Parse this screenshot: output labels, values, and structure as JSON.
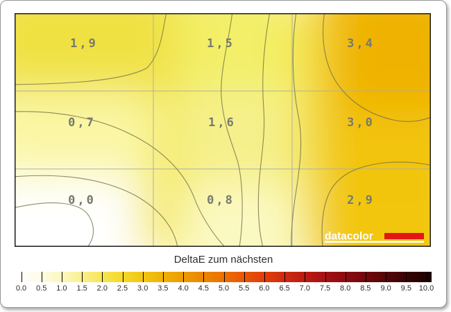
{
  "plot": {
    "base_color": "#f4e855",
    "border_color": "#1b1b1b",
    "grid_color": "#adada3",
    "contour_color": "#6f6f45",
    "label_color": "#767a6c",
    "field_colors": {
      "r0c0": "#f0e142",
      "r0c1": "#f3ef68",
      "r0c2": "#efb204",
      "r1c0": "#faf7a6",
      "r1c1": "#f5f08c",
      "r1c2": "#f2c40e",
      "r2c0": "#ffffff",
      "r2c1": "#fbf9c2",
      "r2c2": "#f2c60b"
    },
    "cells": [
      {
        "row": 0,
        "col": 0,
        "label": "1,9"
      },
      {
        "row": 0,
        "col": 1,
        "label": "1,5"
      },
      {
        "row": 0,
        "col": 2,
        "label": "3,4"
      },
      {
        "row": 1,
        "col": 0,
        "label": "0,7"
      },
      {
        "row": 1,
        "col": 1,
        "label": "1,6"
      },
      {
        "row": 1,
        "col": 2,
        "label": "3,0"
      },
      {
        "row": 2,
        "col": 0,
        "label": "0,0"
      },
      {
        "row": 2,
        "col": 1,
        "label": "0,8"
      },
      {
        "row": 2,
        "col": 2,
        "label": "2,9"
      }
    ],
    "logo": {
      "text": "datacolor",
      "text_color": "#ffffff",
      "bar_color": "#e41613"
    }
  },
  "colorbar": {
    "title": "DeltaE zum nächsten",
    "tick_labels": [
      "0.0",
      "0.5",
      "1.0",
      "1.5",
      "2.0",
      "2.5",
      "3.0",
      "3.5",
      "4.0",
      "4.5",
      "5.0",
      "5.5",
      "6.0",
      "6.5",
      "7.0",
      "7.5",
      "8.0",
      "8.5",
      "9.0",
      "9.5",
      "10.0"
    ],
    "gradient": [
      [
        "0%",
        "#ffffff"
      ],
      [
        "5%",
        "#fffceb"
      ],
      [
        "10%",
        "#fdf8c8"
      ],
      [
        "15%",
        "#faf29a"
      ],
      [
        "20%",
        "#f7e75f"
      ],
      [
        "25%",
        "#f5da30"
      ],
      [
        "30%",
        "#f2c816"
      ],
      [
        "35%",
        "#efb309"
      ],
      [
        "40%",
        "#ec9d04"
      ],
      [
        "45%",
        "#ea8602"
      ],
      [
        "50%",
        "#ee7000"
      ],
      [
        "55%",
        "#e95506"
      ],
      [
        "60%",
        "#de3d0b"
      ],
      [
        "65%",
        "#cd2a10"
      ],
      [
        "70%",
        "#ba1a12"
      ],
      [
        "75%",
        "#a11013"
      ],
      [
        "80%",
        "#870b10"
      ],
      [
        "85%",
        "#6c070b"
      ],
      [
        "90%",
        "#500407"
      ],
      [
        "95%",
        "#330203"
      ],
      [
        "100%",
        "#190101"
      ]
    ]
  },
  "chart_data": {
    "type": "heatmap",
    "title": "DeltaE zum nächsten",
    "grid": {
      "rows": 3,
      "cols": 3
    },
    "values": [
      [
        1.9,
        1.5,
        3.4
      ],
      [
        0.7,
        1.6,
        3.0
      ],
      [
        0.0,
        0.8,
        2.9
      ]
    ],
    "value_labels": [
      [
        "1,9",
        "1,5",
        "3,4"
      ],
      [
        "0,7",
        "1,6",
        "3,0"
      ],
      [
        "0,0",
        "0,8",
        "2,9"
      ]
    ],
    "grid_lines": true,
    "contour_lines": true,
    "watermark": "datacolor",
    "colorbar": {
      "label": "DeltaE zum nächsten",
      "min": 0,
      "max": 10,
      "tick_step": 0.5,
      "position": "bottom",
      "scale_stops": [
        [
          0,
          "#ffffff"
        ],
        [
          1,
          "#fdf8c8"
        ],
        [
          2,
          "#f7e75f"
        ],
        [
          3,
          "#f2c816"
        ],
        [
          4,
          "#ec9d04"
        ],
        [
          5,
          "#ee7000"
        ],
        [
          6,
          "#de3d0b"
        ],
        [
          7,
          "#ba1a12"
        ],
        [
          8,
          "#870b10"
        ],
        [
          9,
          "#500407"
        ],
        [
          10,
          "#190101"
        ]
      ]
    }
  }
}
